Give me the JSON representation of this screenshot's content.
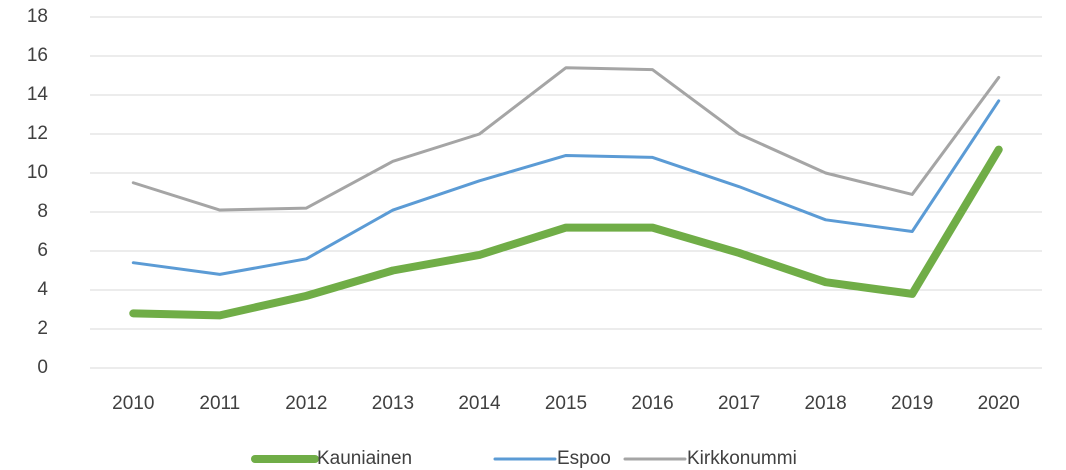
{
  "chart_data": {
    "type": "line",
    "categories": [
      "2010",
      "2011",
      "2012",
      "2013",
      "2014",
      "2015",
      "2016",
      "2017",
      "2018",
      "2019",
      "2020"
    ],
    "series": [
      {
        "name": "Kauniainen",
        "color": "#70ad47",
        "values": [
          2.8,
          2.7,
          3.7,
          5.0,
          5.8,
          7.2,
          7.2,
          5.9,
          4.4,
          3.8,
          11.2
        ]
      },
      {
        "name": "Espoo",
        "color": "#5b9bd5",
        "values": [
          5.4,
          4.8,
          5.6,
          8.1,
          9.6,
          10.9,
          10.8,
          9.3,
          7.6,
          7.0,
          13.7
        ]
      },
      {
        "name": "Kirkkonummi",
        "color": "#a5a5a5",
        "values": [
          9.5,
          8.1,
          8.2,
          10.6,
          12.0,
          15.4,
          15.3,
          12.0,
          10.0,
          8.9,
          14.9
        ]
      }
    ],
    "ylim": [
      0,
      18
    ],
    "yticks": [
      0,
      2,
      4,
      6,
      8,
      10,
      12,
      14,
      16,
      18
    ],
    "grid": true,
    "legend": "bottom"
  }
}
